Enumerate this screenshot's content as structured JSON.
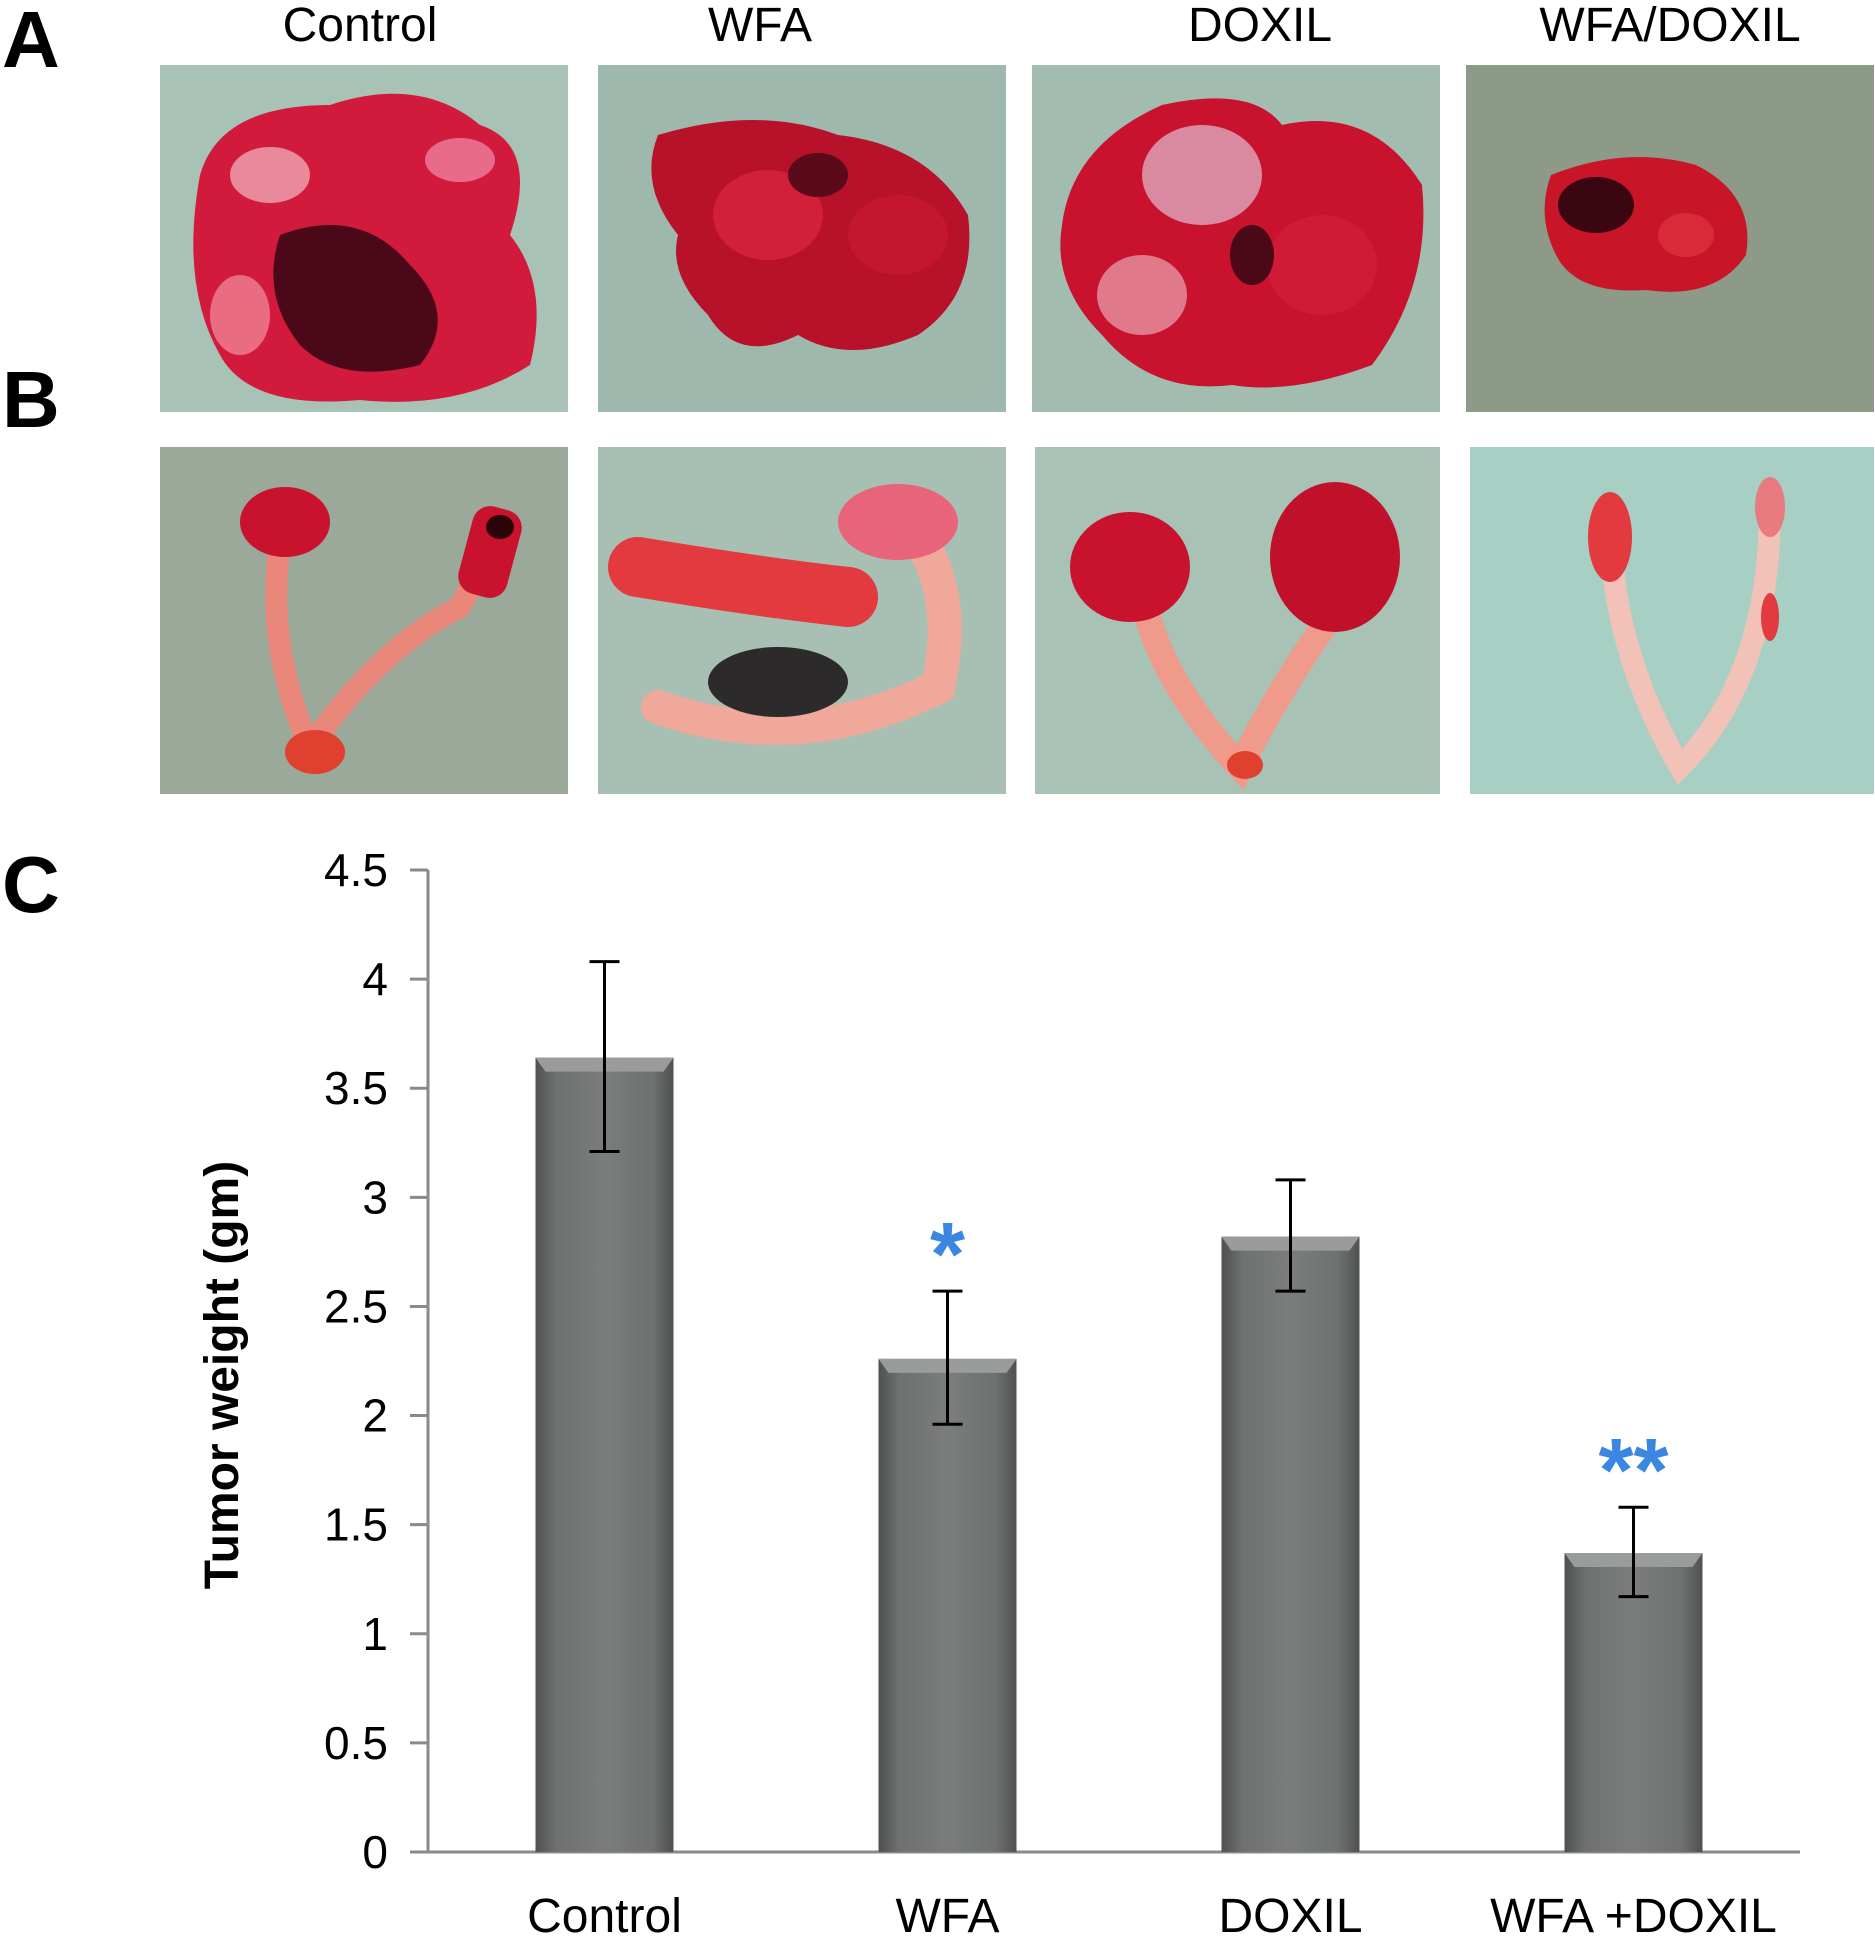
{
  "panels": {
    "a": "A",
    "b": "B",
    "c": "C"
  },
  "photo_columns": [
    "Control",
    "WFA",
    "DOXIL",
    "WFA/DOXIL"
  ],
  "photo_rows": [
    {
      "panel": "A",
      "content": "excised tumor tissue, one photo per treatment group"
    },
    {
      "panel": "B",
      "content": "excised uterine horns, one photo per treatment group"
    }
  ],
  "colors": {
    "bar": "#6b6e6c",
    "bar_highlight": "#9a9c9a",
    "axis": "#8a8a8a",
    "significance": "#3a86e0",
    "tissue": "#c8112a",
    "tissue_dark": "#5a0a18",
    "tray": "#9fb3ad"
  },
  "chart_data": {
    "type": "bar",
    "title": "",
    "xlabel": "",
    "ylabel": "Tumor weight (gm)",
    "ylim": [
      0,
      4.5
    ],
    "yticks": [
      "0",
      "0.5",
      "1",
      "1.5",
      "2",
      "2.5",
      "3",
      "3.5",
      "4",
      "4.5"
    ],
    "categories": [
      "Control",
      "WFA",
      "DOXIL",
      "WFA +DOXIL"
    ],
    "values": [
      3.64,
      2.26,
      2.82,
      1.37
    ],
    "error_upper": [
      4.08,
      2.57,
      3.08,
      1.58
    ],
    "error_lower": [
      3.21,
      1.96,
      2.57,
      1.17
    ],
    "annotations": [
      "",
      "*",
      "",
      "**"
    ],
    "grid": false,
    "legend": "none"
  }
}
